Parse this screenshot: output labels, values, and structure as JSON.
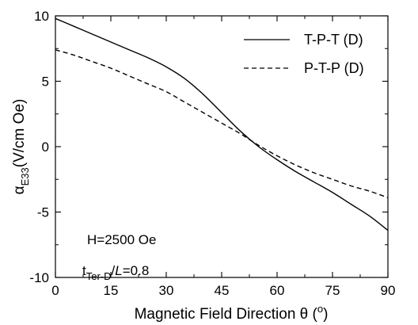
{
  "chart_data": {
    "type": "line",
    "xlabel": "Magnetic Field Direction θ (°)",
    "ylabel": "α_E33 (V/cm Oe)",
    "xlim": [
      0,
      90
    ],
    "ylim": [
      -10,
      10
    ],
    "xticks": [
      "0",
      "15",
      "30",
      "45",
      "60",
      "75",
      "90"
    ],
    "yticks": [
      "10",
      "5",
      "0",
      "-5",
      "-10"
    ],
    "grid": false,
    "legend_position": "top-right",
    "series": [
      {
        "name": "T-P-T (D)",
        "style": "solid",
        "x": [
          0,
          5,
          10,
          15,
          20,
          25,
          30,
          35,
          40,
          45,
          50,
          55,
          60,
          65,
          70,
          75,
          80,
          85,
          90
        ],
        "y": [
          9.8,
          9.2,
          8.6,
          8.0,
          7.4,
          6.8,
          6.1,
          5.2,
          4.0,
          2.6,
          1.2,
          0.0,
          -1.0,
          -1.9,
          -2.7,
          -3.5,
          -4.4,
          -5.3,
          -6.4
        ]
      },
      {
        "name": "P-T-P (D)",
        "style": "dashed",
        "x": [
          0,
          5,
          10,
          15,
          20,
          25,
          30,
          35,
          40,
          45,
          50,
          55,
          60,
          65,
          70,
          75,
          80,
          85,
          90
        ],
        "y": [
          7.4,
          7.0,
          6.5,
          6.0,
          5.4,
          4.8,
          4.2,
          3.4,
          2.6,
          1.8,
          1.0,
          0.1,
          -0.7,
          -1.4,
          -2.0,
          -2.5,
          -3.0,
          -3.4,
          -3.9
        ]
      }
    ],
    "annotations": {
      "field": "H=2500 Oe",
      "ratio_t": "t",
      "ratio_sub": "Ter-D",
      "ratio_rest_sep": "/",
      "ratio_L": "L",
      "ratio_value": "=0.8"
    },
    "colors": {
      "axis": "#000000",
      "line": "#000000"
    }
  },
  "labels": {
    "ylabel_alpha": "α",
    "ylabel_sub": "E33",
    "ylabel_units": "(V/cm Oe)",
    "xlabel_main": "Magnetic Field Direction θ (",
    "xlabel_sup": "o",
    "xlabel_close": ")"
  }
}
